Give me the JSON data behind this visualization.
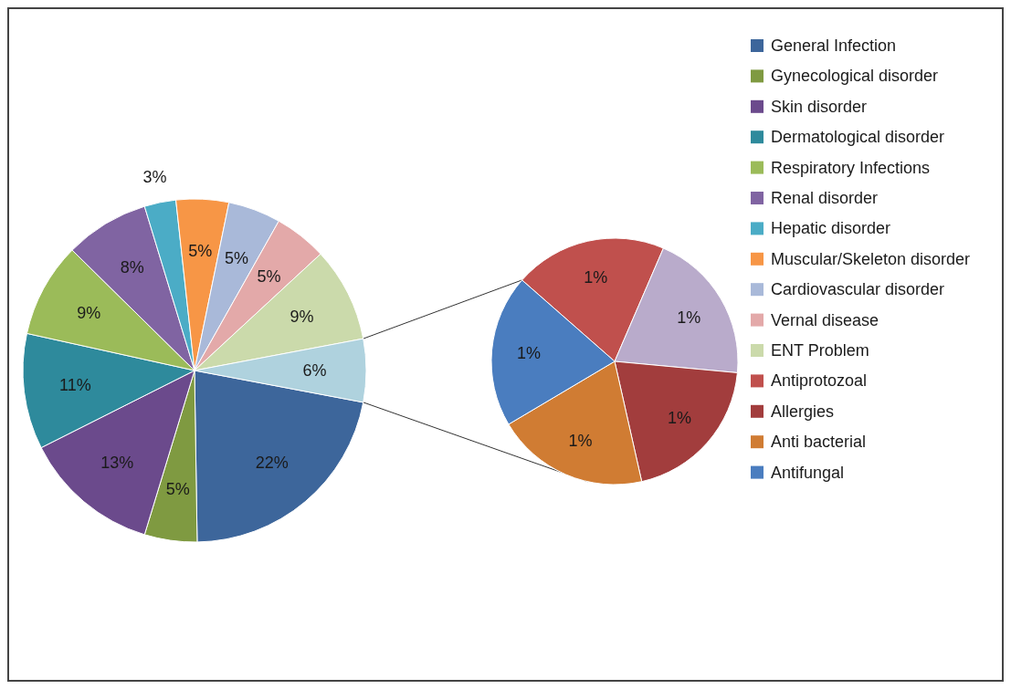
{
  "chart_data": [
    {
      "type": "pie",
      "categories": [
        "General Infection",
        "Gynecological disorder",
        "Skin disorder",
        "Dermatological disorder",
        "Respiratory Infections",
        "Renal disorder",
        "Hepatic disorder",
        "Muscular/Skeleton disorder",
        "Cardiovascular disorder",
        "Vernal disease",
        "ENT Problem",
        null
      ],
      "values": [
        22,
        5,
        13,
        11,
        9,
        8,
        3,
        5,
        5,
        5,
        9,
        6
      ],
      "value_labels": [
        "22%",
        "5%",
        "13%",
        "11%",
        "9%",
        "8%",
        "3%",
        "5%",
        "5%",
        "5%",
        "9%",
        "6%"
      ],
      "colors": [
        "#3d669b",
        "#7f9a41",
        "#6b4a8c",
        "#2e8a9c",
        "#9bbb59",
        "#8064a2",
        "#4bacc6",
        "#f79646",
        "#a9b9d9",
        "#e3a9a9",
        "#cbdaab",
        "#afd2de"
      ],
      "legend": "right"
    },
    {
      "type": "pie",
      "categories": [
        "Antiprotozoal",
        null,
        "Allergies",
        "Anti bacterial",
        "Antifungal"
      ],
      "values": [
        1,
        1,
        1,
        1,
        1
      ],
      "value_labels": [
        "1%",
        "1%",
        "1%",
        "1%",
        "1%"
      ],
      "colors": [
        "#c0504d",
        "#b9abcb",
        "#a23d3d",
        "#d07c33",
        "#4a7dbf"
      ],
      "legend": "right"
    }
  ]
}
